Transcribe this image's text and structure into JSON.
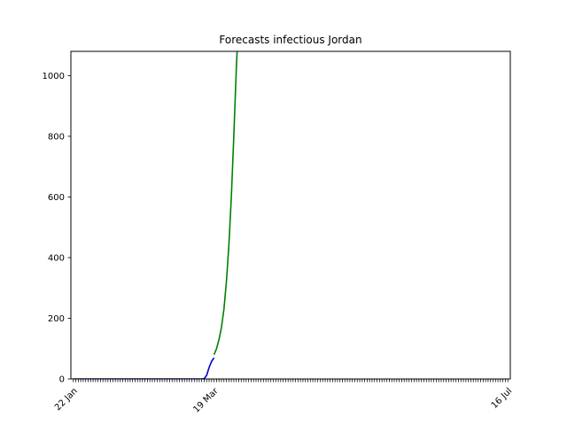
{
  "chart_data": {
    "type": "line",
    "title": "Forecasts infectious Jordan",
    "xlabel": "",
    "ylabel": "",
    "x_tick_labels": [
      "22 Jan",
      "19 Mar",
      "16 Jul"
    ],
    "y_ticks": [
      0,
      200,
      400,
      600,
      800,
      1000
    ],
    "ylim": [
      0,
      1080
    ],
    "xlim": [
      "2020-01-21",
      "2020-07-17"
    ],
    "grid": false,
    "series": [
      {
        "color": "#0000cc",
        "points": [
          [
            "2020-01-22",
            0
          ],
          [
            "2020-02-10",
            0
          ],
          [
            "2020-03-01",
            0
          ],
          [
            "2020-03-14",
            0
          ],
          [
            "2020-03-15",
            1
          ],
          [
            "2020-03-16",
            12
          ],
          [
            "2020-03-17",
            38
          ],
          [
            "2020-03-18",
            58
          ],
          [
            "2020-03-19",
            70
          ]
        ]
      },
      {
        "color": "#008000",
        "points": [
          [
            "2020-03-19",
            80
          ],
          [
            "2020-03-20",
            100
          ],
          [
            "2020-03-21",
            130
          ],
          [
            "2020-03-22",
            170
          ],
          [
            "2020-03-23",
            230
          ],
          [
            "2020-03-24",
            320
          ],
          [
            "2020-03-25",
            440
          ],
          [
            "2020-03-26",
            600
          ],
          [
            "2020-03-27",
            800
          ],
          [
            "2020-03-28",
            1020
          ],
          [
            "2020-03-28T08:00",
            1080
          ]
        ]
      }
    ]
  }
}
